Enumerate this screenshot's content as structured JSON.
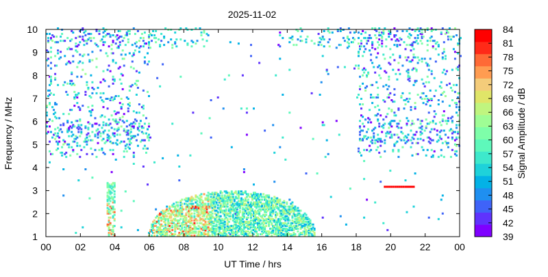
{
  "chart_data": {
    "type": "heatmap",
    "title": "2025-11-02",
    "xlabel": "UT Time / hrs",
    "ylabel": "Frequency / MHz",
    "colorbar_label": "Signal Amplitude / dB",
    "xlim": [
      0,
      24
    ],
    "ylim": [
      1,
      10
    ],
    "x_ticks": [
      "00",
      "02",
      "04",
      "06",
      "08",
      "10",
      "12",
      "14",
      "16",
      "18",
      "20",
      "22",
      "00"
    ],
    "y_ticks": [
      "1",
      "2",
      "3",
      "4",
      "5",
      "6",
      "7",
      "8",
      "9",
      "10"
    ],
    "colorbar_ticks": [
      "39",
      "42",
      "45",
      "48",
      "51",
      "54",
      "57",
      "60",
      "63",
      "66",
      "69",
      "72",
      "75",
      "78",
      "81",
      "84"
    ],
    "colorbar_range": [
      39,
      84
    ],
    "colormap": [
      "#7f00ff",
      "#5f33fd",
      "#3f63f8",
      "#1f8ff0",
      "#03b2e6",
      "#1ed2da",
      "#3ee9cc",
      "#5ef8bb",
      "#7efea9",
      "#9ffd95",
      "#c0f57f",
      "#e0e568",
      "#f4cc7a",
      "#ff9c51",
      "#ff6a36",
      "#ff2a18",
      "#ff0000"
    ],
    "grid": false,
    "features": [
      {
        "name": "daytime ionospheric band",
        "t_start": 5.9,
        "t_end": 15.6,
        "f_min": 1.0,
        "f_max_peak": 2.95,
        "amplitude_range": [
          45,
          84
        ]
      },
      {
        "name": "low band spike",
        "t_center": 3.7,
        "f_min": 1.0,
        "f_max": 3.3,
        "amplitude_peak": 80
      },
      {
        "name": "night scatter early",
        "t_start": 0.0,
        "t_end": 6.0,
        "f_min": 4.4,
        "f_max": 10.0,
        "amplitude_range": [
          39,
          66
        ]
      },
      {
        "name": "night scatter late",
        "t_start": 18.0,
        "t_end": 24.0,
        "f_min": 4.4,
        "f_max": 10.0,
        "amplitude_range": [
          39,
          69
        ]
      },
      {
        "name": "interference line",
        "t_start": 19.6,
        "t_end": 21.3,
        "f": 3.15,
        "amplitude": 82
      }
    ]
  }
}
